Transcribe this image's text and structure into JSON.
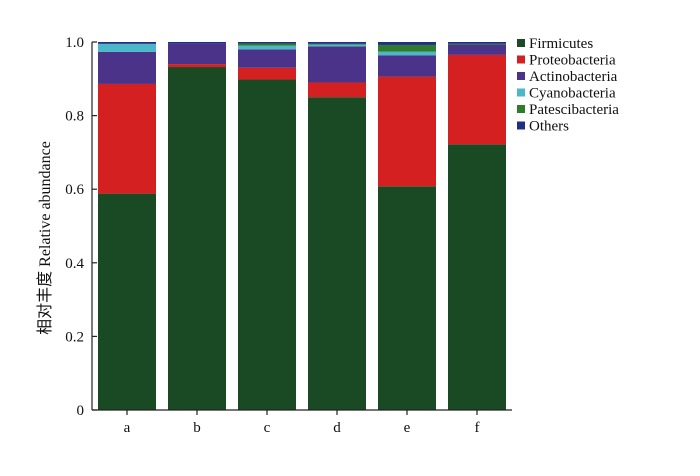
{
  "chart_data": {
    "type": "bar",
    "stacked": true,
    "title": "",
    "xlabel": "",
    "ylabel": "相对丰度 Relative abundance",
    "ylim": [
      0,
      1.0
    ],
    "yticks": [
      "0",
      "0.2",
      "0.4",
      "0.6",
      "0.8",
      "1.0"
    ],
    "grid": false,
    "legend_position": "top-right",
    "categories": [
      "a",
      "b",
      "c",
      "d",
      "e",
      "f"
    ],
    "series": [
      {
        "name": "Firmicutes",
        "color": "#1a4a24",
        "values": [
          0.588,
          0.932,
          0.898,
          0.85,
          0.608,
          0.722
        ]
      },
      {
        "name": "Proteobacteria",
        "color": "#d42020",
        "values": [
          0.298,
          0.008,
          0.032,
          0.04,
          0.298,
          0.243
        ]
      },
      {
        "name": "Actinobacteria",
        "color": "#4a3388",
        "values": [
          0.087,
          0.055,
          0.05,
          0.098,
          0.058,
          0.028
        ]
      },
      {
        "name": "Cyanobacteria",
        "color": "#4bb7c8",
        "values": [
          0.022,
          0.0,
          0.01,
          0.005,
          0.01,
          0.0
        ]
      },
      {
        "name": "Patescibacteria",
        "color": "#2f7d2c",
        "values": [
          0.0,
          0.0,
          0.006,
          0.002,
          0.018,
          0.002
        ]
      },
      {
        "name": "Others",
        "color": "#1f2f86",
        "values": [
          0.005,
          0.005,
          0.004,
          0.005,
          0.008,
          0.005
        ]
      }
    ]
  }
}
